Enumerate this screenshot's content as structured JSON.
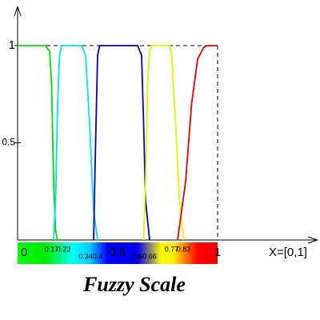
{
  "chart_data": {
    "type": "line",
    "title": "Fuzzy Scale",
    "x_label": "X=[0,1]",
    "xlim": [
      0,
      1
    ],
    "ylim": [
      0,
      1
    ],
    "yticks": [
      0.5,
      1
    ],
    "colorbar_ticks": [
      0,
      0.17,
      0.23,
      0.34,
      0.4,
      0.5,
      0.6,
      0.66,
      0.77,
      0.83,
      1
    ],
    "series": [
      {
        "color": "#00dd00",
        "x": [
          0,
          0.14,
          0.16,
          0.17,
          0.18,
          0.19,
          0.2
        ],
        "values": [
          1,
          1,
          0.97,
          0.8,
          0.3,
          0.05,
          0
        ]
      },
      {
        "color": "#00e5e5",
        "x": [
          0.18,
          0.19,
          0.2,
          0.21,
          0.22,
          0.32,
          0.34,
          0.36,
          0.38,
          0.4
        ],
        "values": [
          0,
          0.2,
          0.7,
          0.95,
          1,
          1,
          0.95,
          0.6,
          0.15,
          0
        ]
      },
      {
        "color": "#0000cc",
        "x": [
          0.38,
          0.39,
          0.4,
          0.41,
          0.6,
          0.62,
          0.63,
          0.64,
          0.66
        ],
        "values": [
          0,
          0.5,
          0.95,
          1,
          1,
          0.95,
          0.6,
          0.2,
          0
        ]
      },
      {
        "color": "#eeee00",
        "x": [
          0.63,
          0.64,
          0.65,
          0.66,
          0.67,
          0.76,
          0.77,
          0.79,
          0.81,
          0.83
        ],
        "values": [
          0,
          0.3,
          0.8,
          0.97,
          1,
          1,
          0.95,
          0.6,
          0.2,
          0
        ]
      },
      {
        "color": "#ee0000",
        "x": [
          0.8,
          0.84,
          0.87,
          0.9,
          0.93,
          0.95,
          0.98,
          1
        ],
        "values": [
          0,
          0.3,
          0.7,
          0.93,
          0.99,
          1,
          1,
          1
        ]
      }
    ]
  }
}
